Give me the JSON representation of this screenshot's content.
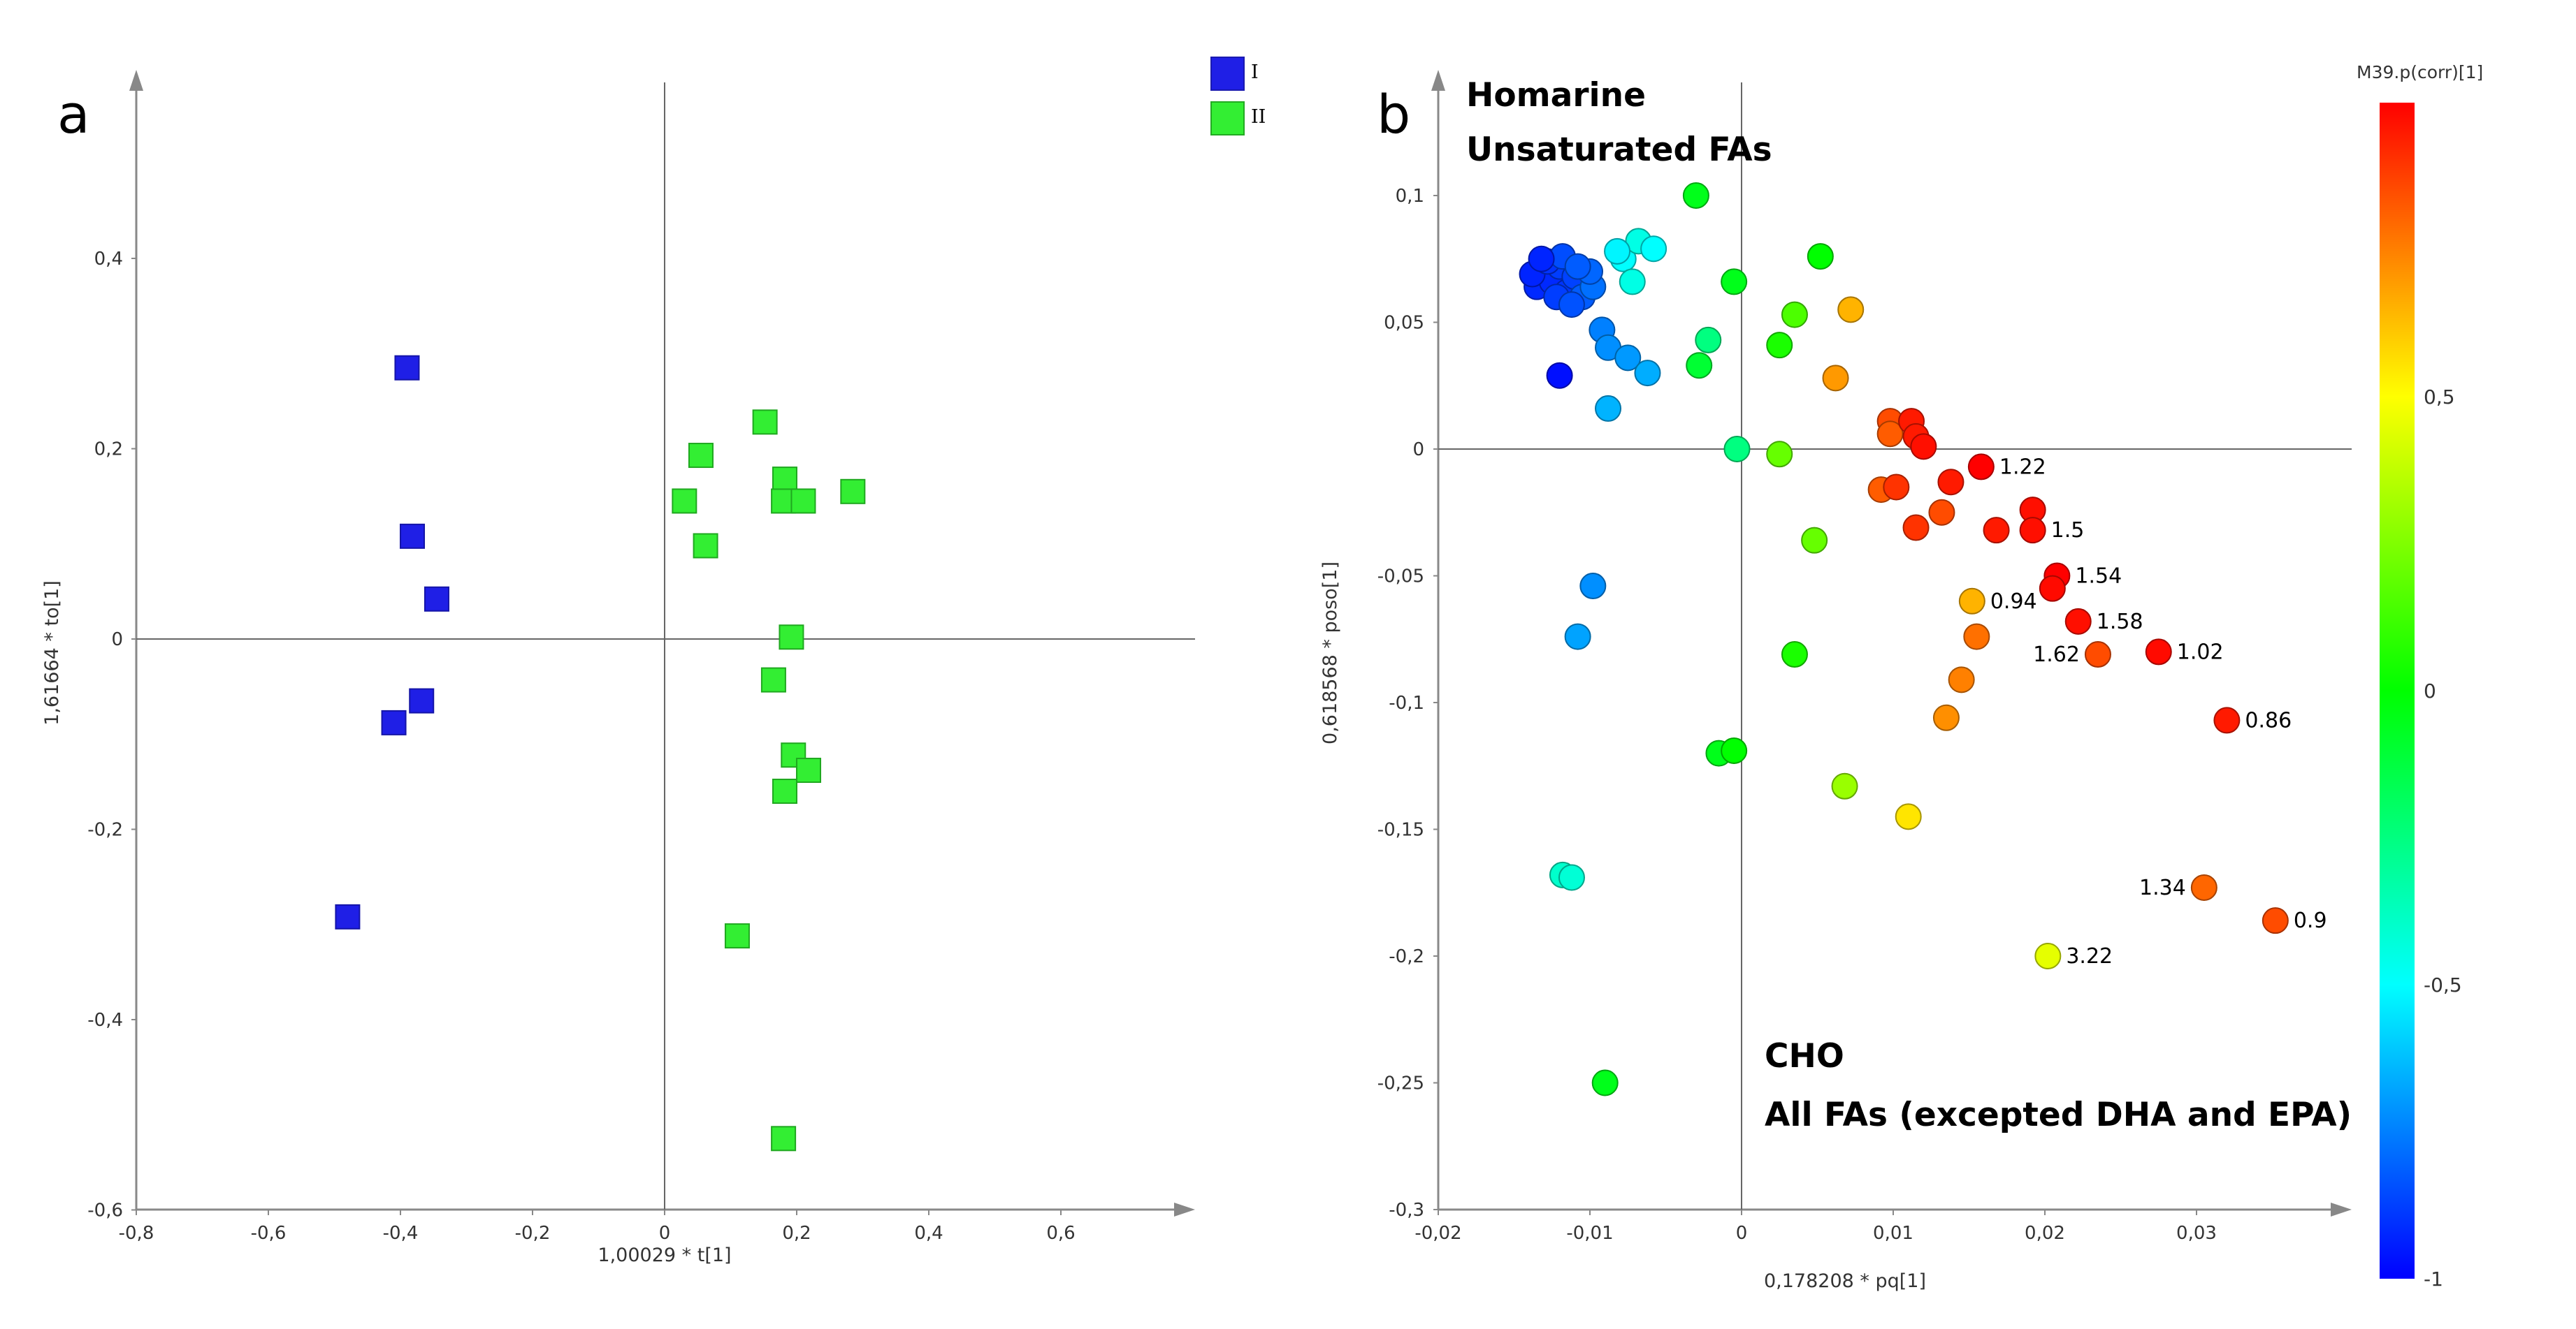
{
  "chart_data": [
    {
      "panel": "a",
      "type": "scatter",
      "xlabel": "1,00029 * t[1]",
      "ylabel": "1,61664 * to[1]",
      "xlim": [
        -0.8,
        0.8
      ],
      "ylim": [
        -0.6,
        0.6
      ],
      "xticks": [
        "-0,8",
        "-0,6",
        "-0,4",
        "-0,2",
        "0",
        "0,2",
        "0,4",
        "0,6"
      ],
      "yticks": [
        "-0,6",
        "-0,4",
        "-0,2",
        "0",
        "0,2",
        "0,4"
      ],
      "legend": [
        "I",
        "II"
      ],
      "colors": {
        "I": "#1F1FE6",
        "II": "#33EE33"
      },
      "series": [
        {
          "name": "I",
          "points": [
            [
              -0.39,
              0.285
            ],
            [
              -0.382,
              0.108
            ],
            [
              -0.345,
              0.042
            ],
            [
              -0.368,
              -0.065
            ],
            [
              -0.41,
              -0.088
            ],
            [
              -0.48,
              -0.292
            ]
          ]
        },
        {
          "name": "II",
          "points": [
            [
              0.152,
              0.228
            ],
            [
              0.055,
              0.193
            ],
            [
              0.03,
              0.145
            ],
            [
              0.062,
              0.098
            ],
            [
              0.182,
              0.168
            ],
            [
              0.18,
              0.145
            ],
            [
              0.21,
              0.145
            ],
            [
              0.285,
              0.155
            ],
            [
              0.192,
              0.002
            ],
            [
              0.165,
              -0.043
            ],
            [
              0.195,
              -0.122
            ],
            [
              0.218,
              -0.138
            ],
            [
              0.182,
              -0.16
            ],
            [
              0.11,
              -0.312
            ],
            [
              0.18,
              -0.525
            ]
          ]
        }
      ]
    },
    {
      "panel": "b",
      "type": "scatter",
      "xlabel": "0,178208 * pq[1]",
      "ylabel": "0,618568 * poso[1]",
      "xlim": [
        -0.02,
        0.04
      ],
      "ylim": [
        -0.3,
        0.15
      ],
      "xticks": [
        "-0,02",
        "-0,01",
        "0",
        "0,01",
        "0,02",
        "0,03"
      ],
      "yticks": [
        "-0,3",
        "-0,25",
        "-0,2",
        "-0,15",
        "-0,1",
        "-0,05",
        "0",
        "0,05",
        "0,1"
      ],
      "annotations": {
        "top": [
          "Homarine",
          "Unsaturated FAs"
        ],
        "bottom": [
          "CHO",
          "All FAs (excepted DHA and EPA)"
        ]
      },
      "colorbar": {
        "title": "M39.p(corr)[1]",
        "ticks": [
          "-1",
          "-0,5",
          "0",
          "0,5"
        ],
        "range": [
          -1,
          1
        ]
      },
      "points": [
        {
          "x": -0.0135,
          "y": 0.064,
          "c": -0.92
        },
        {
          "x": -0.013,
          "y": 0.07,
          "c": -0.9
        },
        {
          "x": -0.0125,
          "y": 0.066,
          "c": -0.92
        },
        {
          "x": -0.012,
          "y": 0.072,
          "c": -0.88
        },
        {
          "x": -0.0115,
          "y": 0.062,
          "c": -0.9
        },
        {
          "x": -0.011,
          "y": 0.068,
          "c": -0.87
        },
        {
          "x": -0.0138,
          "y": 0.069,
          "c": -0.93
        },
        {
          "x": -0.0128,
          "y": 0.074,
          "c": -0.9
        },
        {
          "x": -0.0122,
          "y": 0.06,
          "c": -0.88
        },
        {
          "x": -0.0105,
          "y": 0.06,
          "c": -0.82
        },
        {
          "x": -0.0098,
          "y": 0.064,
          "c": -0.78
        },
        {
          "x": -0.01,
          "y": 0.07,
          "c": -0.8
        },
        {
          "x": -0.0118,
          "y": 0.076,
          "c": -0.85
        },
        {
          "x": -0.0132,
          "y": 0.075,
          "c": -0.93
        },
        {
          "x": -0.0108,
          "y": 0.072,
          "c": -0.82
        },
        {
          "x": -0.0112,
          "y": 0.057,
          "c": -0.84
        },
        {
          "x": -0.012,
          "y": 0.029,
          "c": -0.97
        },
        {
          "x": -0.0092,
          "y": 0.047,
          "c": -0.75
        },
        {
          "x": -0.0088,
          "y": 0.04,
          "c": -0.72
        },
        {
          "x": -0.0075,
          "y": 0.036,
          "c": -0.7
        },
        {
          "x": -0.0062,
          "y": 0.03,
          "c": -0.66
        },
        {
          "x": -0.0088,
          "y": 0.016,
          "c": -0.65
        },
        {
          "x": -0.0078,
          "y": 0.075,
          "c": -0.5
        },
        {
          "x": -0.0072,
          "y": 0.066,
          "c": -0.45
        },
        {
          "x": -0.0068,
          "y": 0.082,
          "c": -0.45
        },
        {
          "x": -0.0058,
          "y": 0.079,
          "c": -0.5
        },
        {
          "x": -0.0082,
          "y": 0.078,
          "c": -0.52
        },
        {
          "x": -0.003,
          "y": 0.1,
          "c": -0.05
        },
        {
          "x": -0.0022,
          "y": 0.043,
          "c": -0.25
        },
        {
          "x": -0.0028,
          "y": 0.033,
          "c": -0.1
        },
        {
          "x": -0.0005,
          "y": 0.066,
          "c": -0.05
        },
        {
          "x": 0.0052,
          "y": 0.076,
          "c": 0.0
        },
        {
          "x": 0.0035,
          "y": 0.053,
          "c": 0.15
        },
        {
          "x": 0.0025,
          "y": 0.041,
          "c": 0.05
        },
        {
          "x": 0.0072,
          "y": 0.055,
          "c": 0.65
        },
        {
          "x": 0.0062,
          "y": 0.028,
          "c": 0.7
        },
        {
          "x": -0.0003,
          "y": 0.0,
          "c": -0.25
        },
        {
          "x": 0.0025,
          "y": -0.002,
          "c": 0.2
        },
        {
          "x": 0.0048,
          "y": -0.036,
          "c": 0.2
        },
        {
          "x": 0.0035,
          "y": -0.081,
          "c": 0.05
        },
        {
          "x": -0.0098,
          "y": -0.054,
          "c": -0.72
        },
        {
          "x": -0.0108,
          "y": -0.074,
          "c": -0.68
        },
        {
          "x": -0.0015,
          "y": -0.12,
          "c": -0.05
        },
        {
          "x": -0.0005,
          "y": -0.119,
          "c": 0.0
        },
        {
          "x": 0.0068,
          "y": -0.133,
          "c": 0.3
        },
        {
          "x": 0.011,
          "y": -0.145,
          "c": 0.55
        },
        {
          "x": -0.0118,
          "y": -0.168,
          "c": -0.4
        },
        {
          "x": -0.0112,
          "y": -0.169,
          "c": -0.42
        },
        {
          "x": -0.009,
          "y": -0.25,
          "c": -0.05
        },
        {
          "x": 0.0098,
          "y": 0.011,
          "c": 0.85
        },
        {
          "x": 0.0098,
          "y": 0.006,
          "c": 0.82
        },
        {
          "x": 0.0112,
          "y": 0.011,
          "c": 0.95
        },
        {
          "x": 0.0115,
          "y": 0.005,
          "c": 0.95
        },
        {
          "x": 0.012,
          "y": 0.001,
          "c": 0.97
        },
        {
          "x": 0.0092,
          "y": -0.016,
          "c": 0.82
        },
        {
          "x": 0.0102,
          "y": -0.015,
          "c": 0.9
        },
        {
          "x": 0.0115,
          "y": -0.031,
          "c": 0.9
        },
        {
          "x": 0.0132,
          "y": -0.025,
          "c": 0.85
        },
        {
          "x": 0.0138,
          "y": -0.013,
          "c": 0.95
        },
        {
          "x": 0.0158,
          "y": -0.007,
          "c": 1.0,
          "label": "1.22"
        },
        {
          "x": 0.0168,
          "y": -0.032,
          "c": 0.95
        },
        {
          "x": 0.0192,
          "y": -0.024,
          "c": 0.97
        },
        {
          "x": 0.0192,
          "y": -0.032,
          "c": 0.97,
          "label": "1.5"
        },
        {
          "x": 0.0152,
          "y": -0.06,
          "c": 0.65,
          "label": "0.94"
        },
        {
          "x": 0.0208,
          "y": -0.05,
          "c": 1.0,
          "label": "1.54"
        },
        {
          "x": 0.0205,
          "y": -0.055,
          "c": 0.98
        },
        {
          "x": 0.0222,
          "y": -0.068,
          "c": 0.97,
          "label": "1.58"
        },
        {
          "x": 0.0155,
          "y": -0.074,
          "c": 0.78
        },
        {
          "x": 0.0235,
          "y": -0.081,
          "c": 0.85,
          "label": "1.62",
          "label_side": "left"
        },
        {
          "x": 0.0275,
          "y": -0.08,
          "c": 0.98,
          "label": "1.02"
        },
        {
          "x": 0.0145,
          "y": -0.091,
          "c": 0.75
        },
        {
          "x": 0.0135,
          "y": -0.106,
          "c": 0.72
        },
        {
          "x": 0.032,
          "y": -0.107,
          "c": 0.95,
          "label": "0.86"
        },
        {
          "x": 0.0305,
          "y": -0.173,
          "c": 0.8,
          "label": "1.34",
          "label_side": "left"
        },
        {
          "x": 0.0352,
          "y": -0.186,
          "c": 0.85,
          "label": "0.9"
        },
        {
          "x": 0.0202,
          "y": -0.2,
          "c": 0.45,
          "label": "3.22"
        }
      ]
    }
  ],
  "panel_a": {
    "letter": "a"
  },
  "panel_b": {
    "letter": "b"
  }
}
